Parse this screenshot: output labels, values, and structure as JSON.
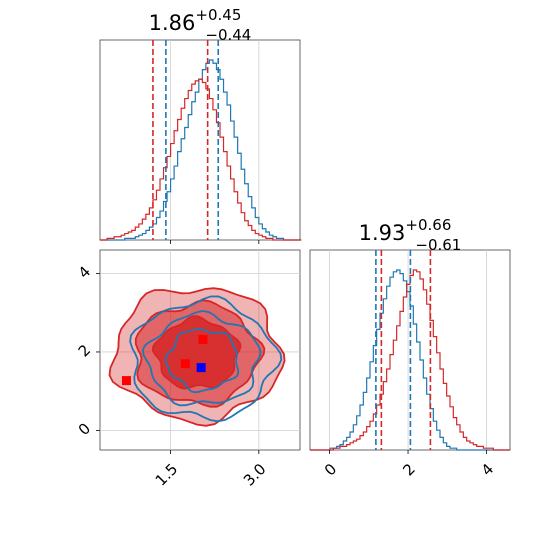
{
  "chart_data": [
    {
      "panel": "top-left",
      "type": "histogram",
      "title": {
        "median": "1.86",
        "plus": "+0.45",
        "minus": "−0.44"
      },
      "xlim": [
        0.3,
        3.7
      ],
      "grid": true,
      "xticks": [
        1.5,
        3.0
      ],
      "series": [
        {
          "color": "#1f77b4",
          "bins_start": 0.3,
          "bin_width": 0.06,
          "counts": [
            0,
            0,
            0,
            0,
            0,
            0,
            0,
            1,
            1,
            1,
            2,
            3,
            4,
            6,
            8,
            10,
            14,
            18,
            24,
            30,
            38,
            46,
            55,
            63,
            70,
            78,
            86,
            92,
            100,
            106,
            110,
            112,
            110,
            106,
            100,
            92,
            84,
            74,
            64,
            54,
            44,
            35,
            27,
            20,
            14,
            10,
            7,
            5,
            3,
            2,
            1,
            1,
            0,
            0,
            0,
            0,
            0
          ],
          "quantile_lines": [
            1.42,
            2.31
          ]
        },
        {
          "color": "#d62728",
          "bins_start": 0.3,
          "bin_width": 0.06,
          "counts": [
            0,
            0,
            1,
            1,
            2,
            2,
            3,
            4,
            5,
            6,
            8,
            10,
            13,
            16,
            20,
            25,
            31,
            38,
            45,
            52,
            60,
            68,
            75,
            82,
            88,
            93,
            97,
            99,
            100,
            98,
            94,
            88,
            81,
            73,
            64,
            55,
            46,
            38,
            30,
            23,
            17,
            12,
            9,
            6,
            4,
            3,
            2,
            1,
            1,
            0,
            0,
            0,
            0,
            0,
            0,
            0,
            0
          ],
          "quantile_lines": [
            1.2,
            2.13
          ]
        }
      ]
    },
    {
      "panel": "bottom-right",
      "type": "histogram",
      "title": {
        "median": "1.93",
        "plus": "+0.66",
        "minus": "−0.61"
      },
      "xlim": [
        -0.5,
        4.6
      ],
      "grid": true,
      "xticks": [
        0,
        2,
        4
      ],
      "series": [
        {
          "color": "#1f77b4",
          "bins_start": -0.5,
          "bin_width": 0.085,
          "counts": [
            0,
            0,
            0,
            0,
            0,
            0,
            1,
            1,
            2,
            3,
            5,
            7,
            10,
            14,
            19,
            25,
            32,
            40,
            49,
            58,
            67,
            76,
            84,
            91,
            96,
            99,
            100,
            98,
            94,
            88,
            80,
            70,
            60,
            50,
            40,
            31,
            23,
            16,
            11,
            7,
            4,
            2,
            1,
            1,
            0,
            0,
            0,
            0,
            0,
            0,
            0,
            0,
            0,
            0,
            0,
            0,
            0,
            0,
            0,
            0
          ],
          "quantile_lines": [
            1.18,
            2.06
          ]
        },
        {
          "color": "#d62728",
          "bins_start": -0.5,
          "bin_width": 0.085,
          "counts": [
            0,
            0,
            0,
            0,
            0,
            0,
            0,
            1,
            1,
            2,
            2,
            3,
            4,
            5,
            6,
            8,
            10,
            13,
            16,
            20,
            25,
            31,
            38,
            45,
            53,
            61,
            69,
            77,
            85,
            92,
            97,
            100,
            99,
            95,
            89,
            81,
            72,
            63,
            54,
            45,
            37,
            30,
            24,
            18,
            14,
            10,
            7,
            5,
            4,
            3,
            2,
            2,
            1,
            1,
            1,
            0,
            0,
            0,
            0,
            0
          ],
          "quantile_lines": [
            1.32,
            2.57
          ]
        }
      ]
    },
    {
      "panel": "bottom-left",
      "type": "contour",
      "xlim": [
        0.3,
        3.7
      ],
      "ylim": [
        -0.5,
        4.6
      ],
      "grid": true,
      "xticks": [
        1.5,
        3.0
      ],
      "yticks": [
        0,
        2,
        4
      ],
      "contours": [
        {
          "color": "#d62728",
          "filled": true,
          "center": [
            1.95,
            1.95
          ],
          "radii": [
            [
              1.42,
              1.7
            ],
            [
              1.05,
              1.28
            ],
            [
              0.7,
              0.88
            ]
          ]
        },
        {
          "color": "#1f77b4",
          "filled": false,
          "center": [
            2.05,
            1.8
          ],
          "radii": [
            [
              1.22,
              1.5
            ],
            [
              0.95,
              1.15
            ],
            [
              0.6,
              0.78
            ]
          ]
        }
      ],
      "markers": [
        {
          "color": "#ff0000",
          "x": 0.75,
          "y": 1.27
        },
        {
          "color": "#ff0000",
          "x": 1.75,
          "y": 1.7
        },
        {
          "color": "#ff0000",
          "x": 2.05,
          "y": 2.32
        },
        {
          "color": "#0000ff",
          "x": 2.02,
          "y": 1.6
        }
      ]
    }
  ]
}
